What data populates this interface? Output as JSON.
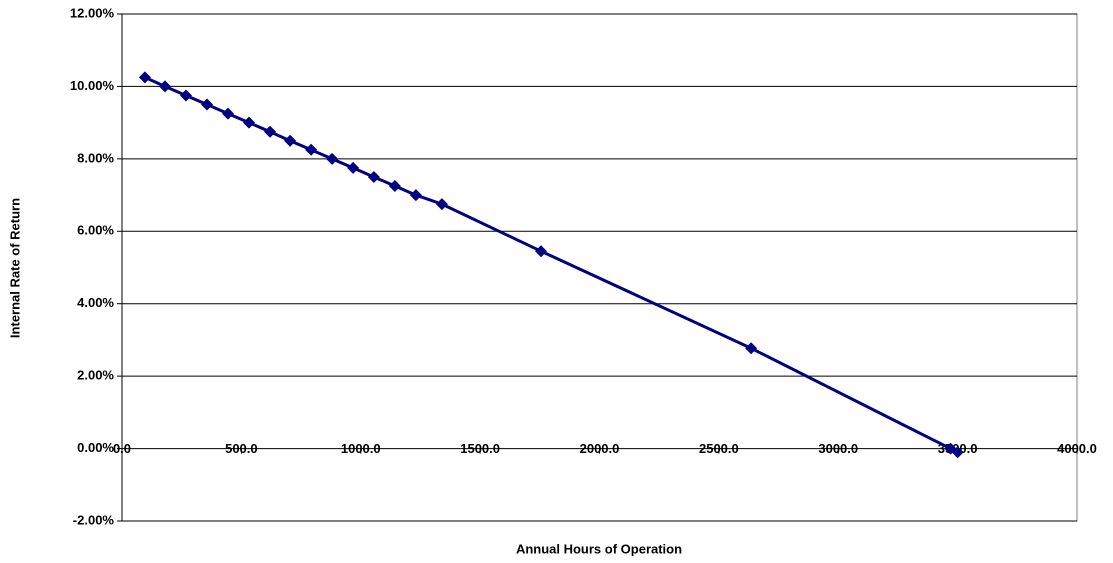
{
  "chart_data": {
    "type": "line",
    "x_label": "Annual Hours of Operation",
    "y_label": "Internal Rate of Return",
    "x": [
      96,
      180,
      268,
      356,
      444,
      532,
      620,
      704,
      792,
      880,
      968,
      1055,
      1143,
      1231,
      1340,
      1755,
      2635,
      3470,
      3500
    ],
    "series": [
      {
        "color": "#000080",
        "values": [
          10.25,
          10.0,
          9.75,
          9.5,
          9.25,
          9.0,
          8.75,
          8.5,
          8.25,
          8.0,
          7.75,
          7.5,
          7.25,
          7.0,
          6.75,
          5.45,
          2.77,
          0.0,
          -0.1
        ]
      }
    ],
    "xlim": [
      0,
      4000
    ],
    "xticks": [
      {
        "value": 0,
        "label": "0.0"
      },
      {
        "value": 500,
        "label": "500.0"
      },
      {
        "value": 1000,
        "label": "1000.0"
      },
      {
        "value": 1500,
        "label": "1500.0"
      },
      {
        "value": 2000,
        "label": "2000.0"
      },
      {
        "value": 2500,
        "label": "2500.0"
      },
      {
        "value": 3000,
        "label": "3000.0"
      },
      {
        "value": 3500,
        "label": "3500.0"
      },
      {
        "value": 4000,
        "label": "4000.0"
      }
    ],
    "ylim": [
      -2,
      12
    ],
    "yticks": [
      {
        "value": -2,
        "label": "-2.00%"
      },
      {
        "value": 0,
        "label": "0.00%"
      },
      {
        "value": 2,
        "label": "2.00%"
      },
      {
        "value": 4,
        "label": "4.00%"
      },
      {
        "value": 6,
        "label": "6.00%"
      },
      {
        "value": 8,
        "label": "8.00%"
      },
      {
        "value": 10,
        "label": "10.00%"
      },
      {
        "value": 12,
        "label": "12.00%"
      }
    ],
    "grid": true
  }
}
